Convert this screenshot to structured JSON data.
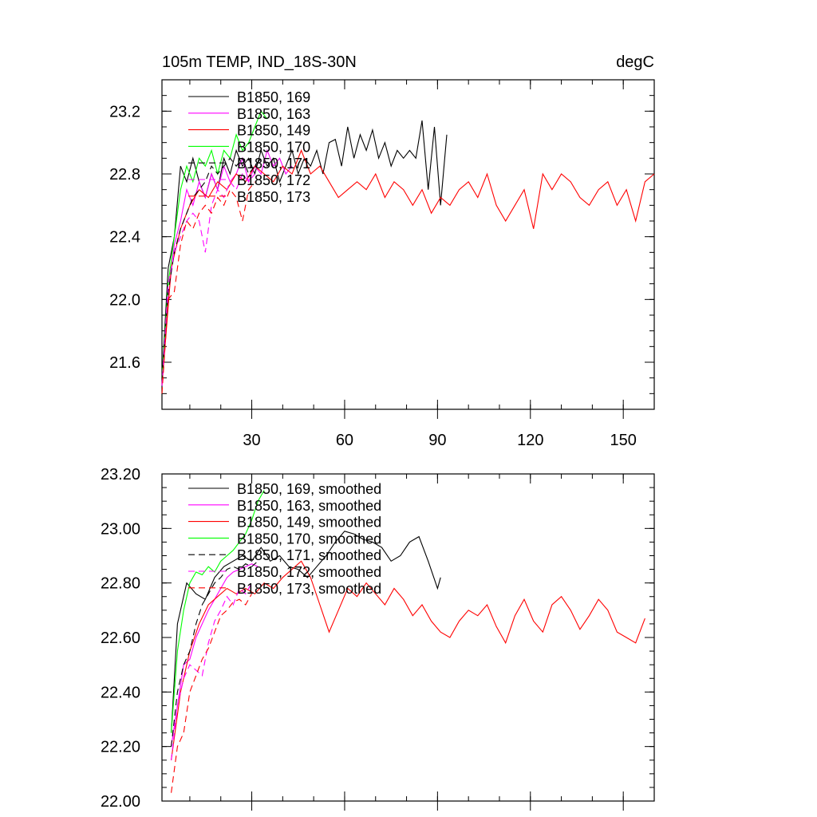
{
  "page": {
    "title": "105m TEMP, IND_18S-30N",
    "units": "degC"
  },
  "chart_data": [
    {
      "type": "line",
      "panel": "top",
      "xlim": [
        1,
        160
      ],
      "ylim": [
        21.3,
        23.4
      ],
      "xticks": [
        30,
        60,
        90,
        120,
        150
      ],
      "xtick_labels": [
        "30",
        "60",
        "90",
        "120",
        "150"
      ],
      "yticks": [
        21.6,
        22.0,
        22.4,
        22.8,
        23.2
      ],
      "ytick_labels": [
        "21.6",
        "22.0",
        "22.4",
        "22.8",
        "23.2"
      ],
      "legend_position": "top-left",
      "series": [
        {
          "name": "B1850, 169",
          "color": "#000000",
          "dash": "solid",
          "x": [
            1,
            3,
            5,
            7,
            9,
            11,
            13,
            15,
            17,
            19,
            21,
            23,
            25,
            27,
            29,
            31,
            33,
            35,
            37,
            39,
            41,
            43,
            45,
            47,
            49,
            51,
            53,
            55,
            57,
            59,
            61,
            63,
            65,
            67,
            69,
            71,
            73,
            75,
            77,
            79,
            81,
            83,
            85,
            87,
            89,
            91,
            93
          ],
          "y": [
            21.5,
            22.2,
            22.4,
            22.85,
            22.75,
            22.9,
            22.75,
            22.65,
            22.8,
            22.7,
            22.9,
            22.8,
            22.95,
            22.85,
            22.9,
            22.8,
            22.95,
            22.85,
            22.9,
            22.75,
            22.85,
            22.95,
            22.8,
            22.9,
            22.85,
            22.95,
            22.8,
            23.0,
            23.02,
            22.85,
            23.1,
            22.9,
            23.05,
            22.95,
            23.08,
            22.9,
            23.0,
            22.85,
            22.95,
            22.9,
            22.95,
            22.9,
            23.14,
            22.7,
            23.1,
            22.6,
            23.05
          ]
        },
        {
          "name": "B1850, 163",
          "color": "#ff00ff",
          "dash": "solid",
          "x": [
            1,
            3,
            5,
            7,
            9,
            11,
            13,
            15,
            17,
            19,
            21,
            23,
            25,
            27,
            29,
            31,
            33,
            35,
            37,
            39,
            41,
            43
          ],
          "y": [
            21.45,
            22.0,
            22.35,
            22.5,
            22.7,
            22.6,
            22.75,
            22.65,
            22.8,
            22.7,
            22.85,
            22.75,
            22.8,
            22.9,
            22.75,
            22.85,
            22.8,
            22.95,
            22.85,
            22.9,
            22.8,
            22.85
          ]
        },
        {
          "name": "B1850, 149",
          "color": "#ff0000",
          "dash": "solid",
          "x": [
            1,
            4,
            7,
            10,
            13,
            16,
            19,
            22,
            25,
            28,
            31,
            34,
            37,
            40,
            43,
            46,
            49,
            52,
            55,
            58,
            61,
            64,
            67,
            70,
            73,
            76,
            79,
            82,
            85,
            88,
            91,
            94,
            97,
            100,
            103,
            106,
            109,
            112,
            115,
            118,
            121,
            124,
            127,
            130,
            133,
            136,
            139,
            142,
            145,
            148,
            151,
            154,
            157,
            160
          ],
          "y": [
            21.45,
            22.2,
            22.45,
            22.6,
            22.7,
            22.65,
            22.75,
            22.7,
            22.8,
            22.75,
            22.85,
            22.8,
            22.75,
            22.85,
            22.8,
            22.95,
            22.8,
            22.85,
            22.75,
            22.65,
            22.7,
            22.75,
            22.7,
            22.8,
            22.65,
            22.75,
            22.7,
            22.6,
            22.7,
            22.55,
            22.65,
            22.6,
            22.7,
            22.75,
            22.65,
            22.8,
            22.6,
            22.5,
            22.6,
            22.7,
            22.45,
            22.8,
            22.7,
            22.8,
            22.75,
            22.65,
            22.6,
            22.7,
            22.75,
            22.6,
            22.7,
            22.5,
            22.75,
            22.8
          ]
        },
        {
          "name": "B1850, 170",
          "color": "#00ff00",
          "dash": "solid",
          "x": [
            1,
            3,
            5,
            7,
            9,
            11,
            13,
            15,
            17,
            19,
            21,
            23,
            25,
            27,
            29,
            31,
            33,
            35
          ],
          "y": [
            21.5,
            22.1,
            22.4,
            22.7,
            22.85,
            22.75,
            22.9,
            22.85,
            22.95,
            22.8,
            22.95,
            22.9,
            23.05,
            22.95,
            23.0,
            23.1,
            23.2,
            23.15
          ]
        },
        {
          "name": "B1850, 171",
          "color": "#000000",
          "dash": "dashed",
          "x": [
            1,
            3,
            5,
            7,
            9,
            11,
            13,
            15,
            17,
            19,
            21,
            23,
            25,
            27,
            29,
            31,
            33
          ],
          "y": [
            21.5,
            22.05,
            22.3,
            22.45,
            22.55,
            22.65,
            22.7,
            22.75,
            22.85,
            22.8,
            22.85,
            22.9,
            22.85,
            22.9,
            22.8,
            22.85,
            22.9
          ]
        },
        {
          "name": "B1850, 172",
          "color": "#ff00ff",
          "dash": "dashed",
          "x": [
            1,
            3,
            5,
            7,
            9,
            11,
            13,
            15,
            17,
            19,
            21,
            23,
            25,
            27,
            29,
            31
          ],
          "y": [
            21.45,
            22.1,
            22.3,
            22.4,
            22.5,
            22.55,
            22.5,
            22.3,
            22.6,
            22.7,
            22.65,
            22.75,
            22.7,
            22.8,
            22.75,
            22.8
          ]
        },
        {
          "name": "B1850, 173",
          "color": "#ff0000",
          "dash": "dashed",
          "x": [
            1,
            3,
            5,
            7,
            9,
            11,
            13,
            15,
            17,
            19,
            21,
            23,
            25,
            27,
            29,
            31
          ],
          "y": [
            21.4,
            22.0,
            22.05,
            22.35,
            22.5,
            22.45,
            22.55,
            22.6,
            22.55,
            22.65,
            22.6,
            22.7,
            22.65,
            22.5,
            22.7,
            22.75
          ]
        }
      ]
    },
    {
      "type": "line",
      "panel": "bottom",
      "xlim": [
        1,
        160
      ],
      "ylim": [
        22.0,
        23.2
      ],
      "xticks": [
        30,
        60,
        90,
        120,
        150
      ],
      "yticks": [
        22.0,
        22.2,
        22.4,
        22.6,
        22.8,
        23.0,
        23.2
      ],
      "ytick_labels": [
        "22.00",
        "22.20",
        "22.40",
        "22.60",
        "22.80",
        "23.00",
        "23.20"
      ],
      "legend_position": "top-left",
      "series": [
        {
          "name": "B1850, 169, smoothed",
          "color": "#000000",
          "dash": "solid",
          "x": [
            4,
            6,
            9,
            12,
            15,
            18,
            21,
            24,
            27,
            30,
            33,
            36,
            39,
            42,
            45,
            48,
            51,
            54,
            57,
            60,
            63,
            66,
            69,
            72,
            75,
            78,
            81,
            84,
            87,
            90,
            91
          ],
          "y": [
            22.25,
            22.65,
            22.8,
            22.76,
            22.74,
            22.82,
            22.86,
            22.88,
            22.9,
            22.88,
            22.93,
            22.88,
            22.9,
            22.86,
            22.85,
            22.82,
            22.86,
            22.9,
            22.95,
            22.99,
            22.98,
            22.96,
            22.95,
            22.93,
            22.88,
            22.9,
            22.95,
            22.97,
            22.88,
            22.78,
            22.82
          ]
        },
        {
          "name": "B1850, 163, smoothed",
          "color": "#ff00ff",
          "dash": "solid",
          "x": [
            4,
            6,
            8,
            10,
            12,
            14,
            16,
            18,
            20,
            22,
            24,
            26,
            28,
            30,
            32
          ],
          "y": [
            22.2,
            22.35,
            22.5,
            22.52,
            22.6,
            22.65,
            22.7,
            22.74,
            22.78,
            22.82,
            22.84,
            22.85,
            22.86,
            22.87,
            22.86
          ]
        },
        {
          "name": "B1850, 149, smoothed",
          "color": "#ff0000",
          "dash": "solid",
          "x": [
            4,
            7,
            10,
            13,
            16,
            19,
            22,
            25,
            28,
            31,
            34,
            37,
            40,
            43,
            46,
            49,
            52,
            55,
            58,
            61,
            64,
            67,
            70,
            73,
            76,
            79,
            82,
            85,
            88,
            91,
            94,
            97,
            100,
            103,
            106,
            109,
            112,
            115,
            118,
            121,
            124,
            127,
            130,
            133,
            136,
            139,
            142,
            145,
            148,
            151,
            154,
            157
          ],
          "y": [
            22.15,
            22.4,
            22.55,
            22.65,
            22.72,
            22.75,
            22.78,
            22.76,
            22.78,
            22.76,
            22.8,
            22.78,
            22.82,
            22.85,
            22.88,
            22.82,
            22.72,
            22.62,
            22.7,
            22.78,
            22.75,
            22.8,
            22.76,
            22.72,
            22.78,
            22.74,
            22.68,
            22.72,
            22.66,
            22.62,
            22.6,
            22.66,
            22.7,
            22.68,
            22.72,
            22.64,
            22.58,
            22.68,
            22.74,
            22.66,
            22.62,
            22.72,
            22.75,
            22.7,
            22.63,
            22.68,
            22.74,
            22.7,
            22.62,
            22.6,
            22.58,
            22.67
          ]
        },
        {
          "name": "B1850, 170, smoothed",
          "color": "#00ff00",
          "dash": "solid",
          "x": [
            4,
            6,
            8,
            10,
            12,
            14,
            16,
            18,
            20,
            22,
            24,
            26,
            28,
            30,
            32,
            34
          ],
          "y": [
            22.25,
            22.55,
            22.7,
            22.8,
            22.84,
            22.83,
            22.86,
            22.84,
            22.88,
            22.9,
            22.92,
            22.95,
            22.98,
            23.03,
            23.1,
            23.14
          ]
        },
        {
          "name": "B1850, 171, smoothed",
          "color": "#000000",
          "dash": "dashed",
          "x": [
            4,
            6,
            8,
            10,
            12,
            14,
            16,
            18,
            20,
            22,
            24,
            26,
            28,
            30,
            32
          ],
          "y": [
            22.2,
            22.4,
            22.5,
            22.55,
            22.65,
            22.72,
            22.76,
            22.8,
            22.82,
            22.85,
            22.86,
            22.85,
            22.87,
            22.86,
            22.88
          ]
        },
        {
          "name": "B1850, 172, smoothed",
          "color": "#ff00ff",
          "dash": "dashed",
          "x": [
            4,
            6,
            8,
            10,
            12,
            14,
            16,
            18,
            20,
            22,
            24,
            26,
            28,
            30
          ],
          "y": [
            22.15,
            22.35,
            22.45,
            22.5,
            22.48,
            22.46,
            22.58,
            22.66,
            22.7,
            22.75,
            22.72,
            22.78,
            22.76,
            22.8
          ]
        },
        {
          "name": "B1850, 173, smoothed",
          "color": "#ff0000",
          "dash": "dashed",
          "x": [
            4,
            6,
            8,
            10,
            12,
            14,
            16,
            18,
            20,
            22,
            24,
            26,
            28,
            30
          ],
          "y": [
            22.03,
            22.2,
            22.25,
            22.4,
            22.46,
            22.52,
            22.56,
            22.62,
            22.68,
            22.7,
            22.73,
            22.74,
            22.72,
            22.76
          ]
        }
      ]
    }
  ]
}
